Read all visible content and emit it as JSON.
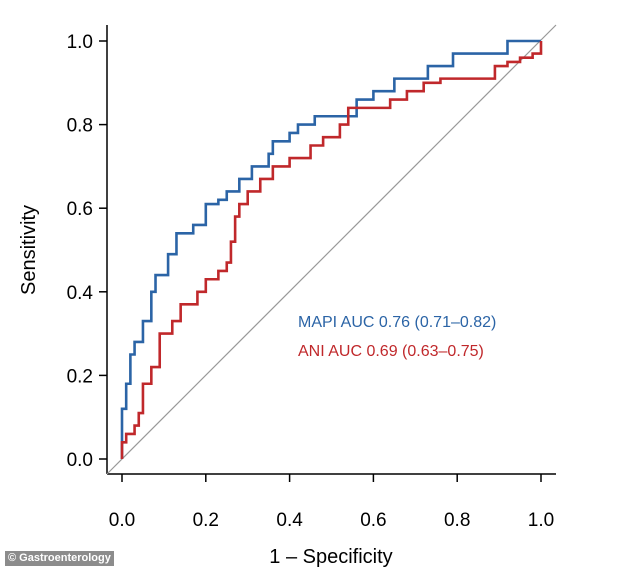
{
  "chart_data": {
    "type": "line",
    "xlabel": "1 – Specificity",
    "ylabel": "Sensitivity",
    "xlim": [
      0,
      1
    ],
    "ylim": [
      0,
      1
    ],
    "xticks": [
      "0.0",
      "0.2",
      "0.4",
      "0.6",
      "0.8",
      "1.0"
    ],
    "yticks": [
      "0.0",
      "0.2",
      "0.4",
      "0.6",
      "0.8",
      "1.0"
    ],
    "grid": false,
    "reference_line": "diagonal",
    "series": [
      {
        "name": "MAPI AUC 0.76 (0.71–0.82)",
        "color": "#2b64a6",
        "step": true,
        "x": [
          0,
          0,
          0.01,
          0.02,
          0.03,
          0.05,
          0.07,
          0.08,
          0.11,
          0.13,
          0.17,
          0.2,
          0.23,
          0.25,
          0.28,
          0.31,
          0.35,
          0.36,
          0.4,
          0.42,
          0.46,
          0.53,
          0.56,
          0.6,
          0.65,
          0.72,
          0.73,
          0.79,
          0.9,
          0.92,
          1.0
        ],
        "y": [
          0,
          0.12,
          0.18,
          0.25,
          0.28,
          0.33,
          0.4,
          0.44,
          0.49,
          0.54,
          0.56,
          0.61,
          0.62,
          0.64,
          0.67,
          0.7,
          0.73,
          0.76,
          0.78,
          0.8,
          0.82,
          0.82,
          0.86,
          0.88,
          0.91,
          0.91,
          0.94,
          0.97,
          0.97,
          1.0,
          1.0
        ]
      },
      {
        "name": "ANI AUC 0.69 (0.63–0.75)",
        "color": "#c0282b",
        "step": true,
        "x": [
          0,
          0,
          0.01,
          0.03,
          0.04,
          0.05,
          0.07,
          0.09,
          0.12,
          0.14,
          0.18,
          0.2,
          0.23,
          0.25,
          0.26,
          0.27,
          0.28,
          0.3,
          0.33,
          0.36,
          0.4,
          0.45,
          0.48,
          0.52,
          0.54,
          0.6,
          0.64,
          0.68,
          0.72,
          0.76,
          0.87,
          0.89,
          0.92,
          0.95,
          0.98,
          1.0
        ],
        "y": [
          0,
          0.04,
          0.06,
          0.08,
          0.11,
          0.18,
          0.22,
          0.3,
          0.33,
          0.37,
          0.4,
          0.43,
          0.45,
          0.47,
          0.52,
          0.58,
          0.61,
          0.64,
          0.67,
          0.7,
          0.72,
          0.75,
          0.77,
          0.8,
          0.84,
          0.84,
          0.86,
          0.88,
          0.9,
          0.91,
          0.91,
          0.94,
          0.95,
          0.96,
          0.97,
          1.0
        ]
      }
    ]
  },
  "credit": "© Gastroenterology"
}
